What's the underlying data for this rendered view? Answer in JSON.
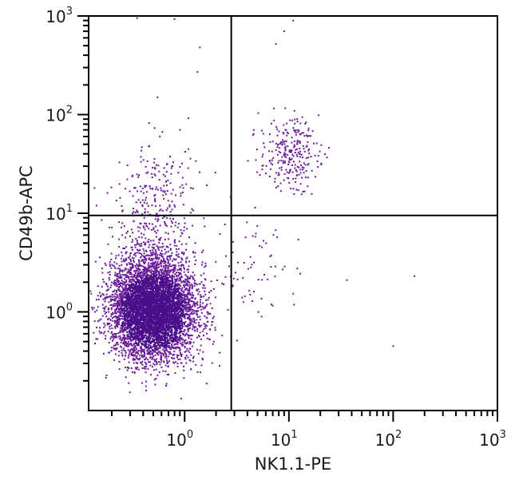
{
  "chart_data": {
    "type": "scatter",
    "subtype": "flow-cytometry-dot-plot",
    "title": "",
    "xlabel": "NK1.1-PE",
    "ylabel": "CD49b-APC",
    "xscale": "log",
    "yscale": "log",
    "xlim": [
      0.12,
      1000
    ],
    "ylim": [
      0.1,
      1000
    ],
    "x_ticks": [
      {
        "value": 1,
        "base": "10",
        "exp": "0"
      },
      {
        "value": 10,
        "base": "10",
        "exp": "1"
      },
      {
        "value": 100,
        "base": "10",
        "exp": "2"
      },
      {
        "value": 1000,
        "base": "10",
        "exp": "3"
      }
    ],
    "y_ticks": [
      {
        "value": 1,
        "base": "10",
        "exp": "0"
      },
      {
        "value": 10,
        "base": "10",
        "exp": "1"
      },
      {
        "value": 100,
        "base": "10",
        "exp": "2"
      },
      {
        "value": 1000,
        "base": "10",
        "exp": "3"
      }
    ],
    "grid": false,
    "legend": null,
    "quadrant_gates": {
      "x": 2.8,
      "y": 9.5
    },
    "point_color": "#6a1b9a",
    "dense_color": "#4a0e8a",
    "populations": [
      {
        "name": "NK1.1- CD49b- (main cluster)",
        "quadrant": "lower-left",
        "center_x": 0.5,
        "center_y": 1.0,
        "spread_log_x": 0.2,
        "spread_log_y": 0.24,
        "count": 6000
      },
      {
        "name": "NK1.1- CD49b+ (scattered)",
        "quadrant": "upper-left",
        "center_x": 0.55,
        "center_y": 14,
        "spread_log_x": 0.2,
        "spread_log_y": 0.3,
        "count": 220
      },
      {
        "name": "NK1.1+ CD49b+ (NK cells)",
        "quadrant": "upper-right",
        "center_x": 10,
        "center_y": 40,
        "spread_log_x": 0.14,
        "spread_log_y": 0.18,
        "count": 260
      },
      {
        "name": "NK1.1+ CD49b- (sparse)",
        "quadrant": "lower-right",
        "center_x": 5,
        "center_y": 3,
        "spread_log_x": 0.22,
        "spread_log_y": 0.3,
        "count": 70
      }
    ],
    "outliers": [
      {
        "x": 36,
        "y": 2.1
      },
      {
        "x": 160,
        "y": 2.3
      },
      {
        "x": 100,
        "y": 0.45
      },
      {
        "x": 0.35,
        "y": 950
      },
      {
        "x": 0.8,
        "y": 930
      },
      {
        "x": 1.4,
        "y": 480
      },
      {
        "x": 0.55,
        "y": 150
      },
      {
        "x": 0.9,
        "y": 70
      },
      {
        "x": 11,
        "y": 900
      },
      {
        "x": 9,
        "y": 700
      },
      {
        "x": 7.5,
        "y": 520
      }
    ],
    "quadrant_labels_visible": false
  }
}
